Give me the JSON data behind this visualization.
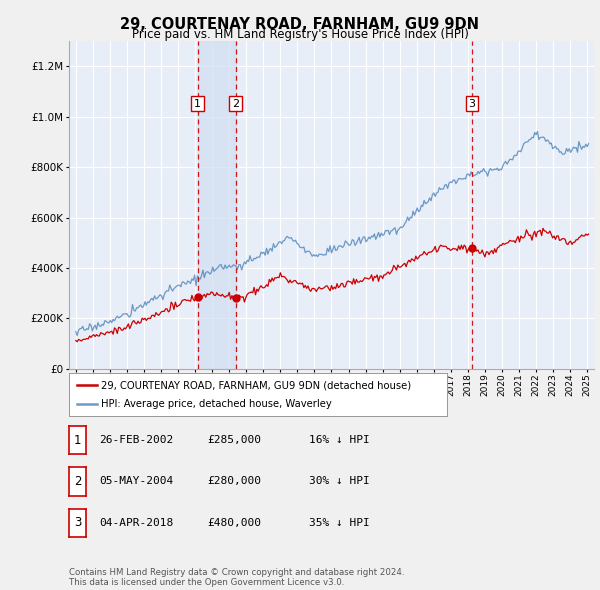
{
  "title": "29, COURTENAY ROAD, FARNHAM, GU9 9DN",
  "subtitle": "Price paid vs. HM Land Registry's House Price Index (HPI)",
  "legend_label_red": "29, COURTENAY ROAD, FARNHAM, GU9 9DN (detached house)",
  "legend_label_blue": "HPI: Average price, detached house, Waverley",
  "footer": "Contains HM Land Registry data © Crown copyright and database right 2024.\nThis data is licensed under the Open Government Licence v3.0.",
  "sales": [
    {
      "num": 1,
      "date": "26-FEB-2002",
      "price": "£285,000",
      "rel": "16% ↓ HPI",
      "year": 2002.15
    },
    {
      "num": 2,
      "date": "05-MAY-2004",
      "price": "£280,000",
      "rel": "30% ↓ HPI",
      "year": 2004.38
    },
    {
      "num": 3,
      "date": "04-APR-2018",
      "price": "£480,000",
      "rel": "35% ↓ HPI",
      "year": 2018.25
    }
  ],
  "sale_prices": [
    285000,
    280000,
    480000
  ],
  "ylim": [
    0,
    1300000
  ],
  "yticks": [
    0,
    200000,
    400000,
    600000,
    800000,
    1000000,
    1200000
  ],
  "xlim_start": 1994.6,
  "xlim_end": 2025.4,
  "bg_color": "#f0f0f0",
  "plot_bg": "#e8eef8",
  "shade_color": "#d0ddf0",
  "grid_color": "#ffffff",
  "red_color": "#cc0000",
  "blue_color": "#5588bb"
}
